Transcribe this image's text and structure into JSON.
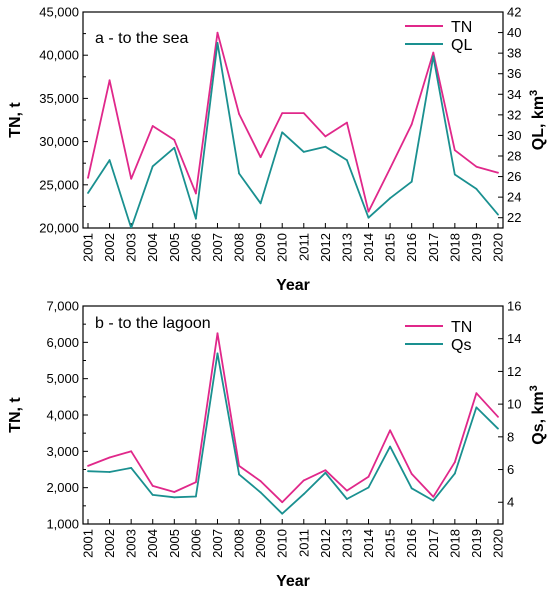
{
  "chart_data": [
    {
      "type": "line",
      "annotation": "a - to the sea",
      "xlabel": "Year",
      "ylabel_left": "TN, t",
      "ylabel_right_main": "QL, km",
      "ylabel_right_sup": "3",
      "categories": [
        "2001",
        "2002",
        "2003",
        "2004",
        "2005",
        "2006",
        "2007",
        "2008",
        "2009",
        "2010",
        "2011",
        "2012",
        "2013",
        "2014",
        "2015",
        "2016",
        "2017",
        "2018",
        "2019",
        "2020"
      ],
      "ylim_left": [
        20000,
        45000
      ],
      "ylim_right": [
        21,
        42
      ],
      "yticks_left": [
        "20,000",
        "25,000",
        "30,000",
        "35,000",
        "40,000",
        "45,000"
      ],
      "yticks_left_values": [
        20000,
        25000,
        30000,
        35000,
        40000,
        45000
      ],
      "yticks_right": [
        "22",
        "24",
        "26",
        "28",
        "30",
        "32",
        "34",
        "36",
        "38",
        "40",
        "42"
      ],
      "yticks_right_values": [
        22,
        24,
        26,
        28,
        30,
        32,
        34,
        36,
        38,
        40,
        42
      ],
      "series": [
        {
          "name": "TN",
          "axis": "left",
          "color": "#e0288a",
          "values": [
            25800,
            37100,
            25700,
            31800,
            30200,
            24000,
            42600,
            33200,
            28200,
            33300,
            33300,
            30600,
            32200,
            21900,
            26900,
            32000,
            40300,
            29000,
            27100,
            26400
          ]
        },
        {
          "name": "QL",
          "axis": "right",
          "color": "#1a9090",
          "values": [
            24.4,
            27.6,
            21.0,
            27.0,
            28.8,
            21.9,
            39.0,
            26.3,
            23.4,
            30.3,
            28.4,
            28.9,
            27.6,
            22.0,
            23.9,
            25.5,
            37.7,
            26.2,
            24.8,
            22.3
          ]
        }
      ]
    },
    {
      "type": "line",
      "annotation": "b - to the lagoon",
      "xlabel": "Year",
      "ylabel_left": "TN, t",
      "ylabel_right_main": "Qs, km",
      "ylabel_right_sup": "3",
      "categories": [
        "2001",
        "2002",
        "2003",
        "2004",
        "2005",
        "2006",
        "2007",
        "2008",
        "2009",
        "2010",
        "2011",
        "2012",
        "2013",
        "2014",
        "2015",
        "2016",
        "2017",
        "2018",
        "2019",
        "2020"
      ],
      "ylim_left": [
        1000,
        7000
      ],
      "ylim_right": [
        2.67,
        16
      ],
      "yticks_left": [
        "1,000",
        "2,000",
        "3,000",
        "4,000",
        "5,000",
        "6,000",
        "7,000"
      ],
      "yticks_left_values": [
        1000,
        2000,
        3000,
        4000,
        5000,
        6000,
        7000
      ],
      "yticks_right": [
        "4",
        "6",
        "8",
        "10",
        "12",
        "14",
        "16"
      ],
      "yticks_right_values": [
        4,
        6,
        8,
        10,
        12,
        14,
        16
      ],
      "series": [
        {
          "name": "TN",
          "axis": "left",
          "color": "#e0288a",
          "values": [
            2600,
            2830,
            3000,
            2050,
            1880,
            2150,
            6250,
            2600,
            2180,
            1600,
            2200,
            2480,
            1920,
            2300,
            3580,
            2380,
            1750,
            2700,
            4600,
            3950
          ]
        },
        {
          "name": "Qs",
          "axis": "right",
          "color": "#1a9090",
          "values": [
            5.9,
            5.85,
            6.1,
            4.45,
            4.3,
            4.35,
            13.1,
            5.7,
            4.6,
            3.3,
            4.5,
            5.8,
            4.2,
            4.9,
            7.4,
            4.85,
            4.1,
            5.75,
            9.8,
            8.5
          ]
        }
      ]
    }
  ]
}
